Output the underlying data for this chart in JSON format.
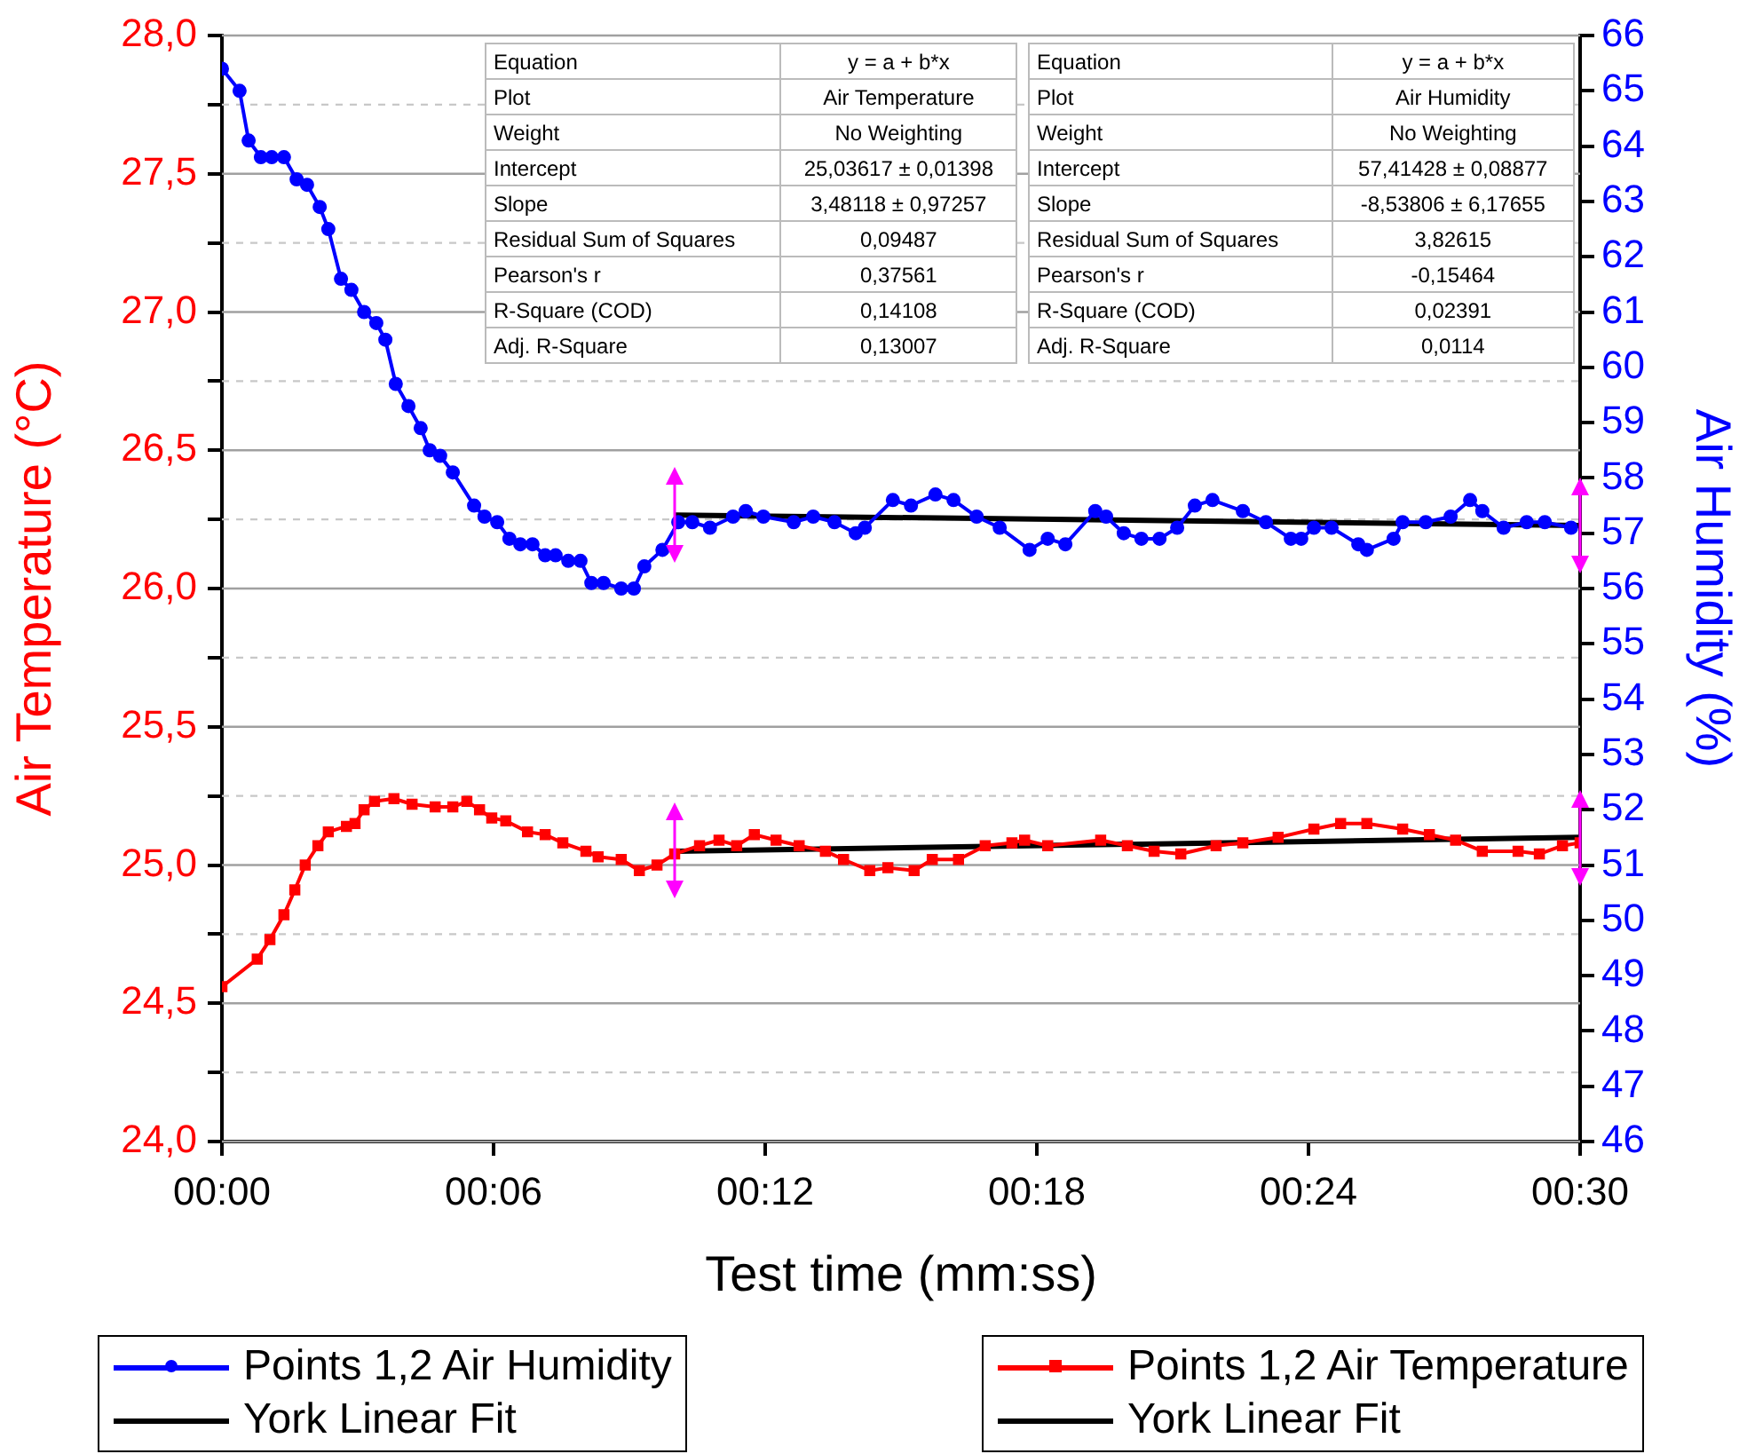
{
  "chart_data": {
    "type": "line",
    "xlabel": "Test time (mm:ss)",
    "ylabel": "Air Temperature (°C)",
    "y2label": "Air Humidity (%)",
    "xlim": [
      0,
      30
    ],
    "xticks": [
      {
        "value": 0,
        "label": "00:00"
      },
      {
        "value": 6,
        "label": "00:06"
      },
      {
        "value": 12,
        "label": "00:12"
      },
      {
        "value": 18,
        "label": "00:18"
      },
      {
        "value": 24,
        "label": "00:24"
      },
      {
        "value": 30,
        "label": "00:30"
      }
    ],
    "ylim": [
      24,
      28
    ],
    "yticks": [
      {
        "value": 24,
        "label": "24,0"
      },
      {
        "value": 24.25,
        "label": null
      },
      {
        "value": 24.5,
        "label": "24,5"
      },
      {
        "value": 24.75,
        "label": null
      },
      {
        "value": 25,
        "label": "25,0"
      },
      {
        "value": 25.25,
        "label": null
      },
      {
        "value": 25.5,
        "label": "25,5"
      },
      {
        "value": 25.75,
        "label": null
      },
      {
        "value": 26,
        "label": "26,0"
      },
      {
        "value": 26.25,
        "label": null
      },
      {
        "value": 26.5,
        "label": "26,5"
      },
      {
        "value": 26.75,
        "label": null
      },
      {
        "value": 27,
        "label": "27,0"
      },
      {
        "value": 27.25,
        "label": null
      },
      {
        "value": 27.5,
        "label": "27,5"
      },
      {
        "value": 27.75,
        "label": null
      },
      {
        "value": 28,
        "label": "28,0"
      }
    ],
    "y2lim": [
      46,
      66
    ],
    "y2ticks": [
      46,
      47,
      48,
      49,
      50,
      51,
      52,
      53,
      54,
      55,
      56,
      57,
      58,
      59,
      60,
      61,
      62,
      63,
      64,
      65,
      66
    ],
    "grid": "y",
    "legend": "bottom",
    "series": [
      {
        "name": "Points 1,2 Air Humidity",
        "color": "#0000ff",
        "axis": "y2",
        "marker": "circle",
        "x": [
          0,
          0.39,
          0.59,
          0.86,
          1.1,
          1.37,
          1.65,
          1.88,
          2.16,
          2.35,
          2.63,
          2.86,
          3.14,
          3.41,
          3.61,
          3.84,
          4.12,
          4.39,
          4.59,
          4.82,
          5.1,
          5.57,
          5.8,
          6.08,
          6.35,
          6.59,
          6.86,
          7.14,
          7.37,
          7.65,
          7.92,
          8.16,
          8.43,
          8.82,
          9.1,
          9.33,
          9.73,
          10.08,
          10.39,
          10.78,
          11.29,
          11.57,
          11.96,
          12.63,
          13.06,
          13.53,
          14,
          14.2,
          14.82,
          15.22,
          15.76,
          16.16,
          16.67,
          17.18,
          17.84,
          18.24,
          18.63,
          19.29,
          19.53,
          19.92,
          20.31,
          20.71,
          21.1,
          21.49,
          21.88,
          22.55,
          23.06,
          23.61,
          23.84,
          24.12,
          24.51,
          25.1,
          25.29,
          25.88,
          26.08,
          26.59,
          27.14,
          27.57,
          27.84,
          28.31,
          28.82,
          29.22,
          29.8
        ],
        "values": [
          65.4,
          65,
          64.1,
          63.8,
          63.8,
          63.8,
          63.4,
          63.3,
          62.9,
          62.5,
          61.6,
          61.4,
          61,
          60.8,
          60.5,
          59.7,
          59.3,
          58.9,
          58.5,
          58.4,
          58.1,
          57.5,
          57.3,
          57.2,
          56.9,
          56.8,
          56.8,
          56.6,
          56.6,
          56.5,
          56.5,
          56.1,
          56.1,
          56,
          56,
          56.4,
          56.7,
          57.2,
          57.2,
          57.1,
          57.3,
          57.4,
          57.3,
          57.2,
          57.3,
          57.2,
          57,
          57.1,
          57.6,
          57.5,
          57.7,
          57.6,
          57.3,
          57.1,
          56.7,
          56.9,
          56.8,
          57.4,
          57.3,
          57,
          56.9,
          56.9,
          57.1,
          57.5,
          57.6,
          57.4,
          57.2,
          56.9,
          56.9,
          57.1,
          57.1,
          56.8,
          56.7,
          56.9,
          57.2,
          57.2,
          57.3,
          57.6,
          57.4,
          57.1,
          57.2,
          57.2,
          57.1
        ]
      },
      {
        "name": "York Linear Fit",
        "color": "#000000",
        "axis": "y2",
        "marker": "none",
        "x": [
          10,
          30
        ],
        "values": [
          57.33,
          57.14
        ]
      },
      {
        "name": "Points 1,2 Air Temperature",
        "color": "#ff0000",
        "axis": "y",
        "marker": "square",
        "x": [
          0,
          0.78,
          1.06,
          1.37,
          1.61,
          1.84,
          2.12,
          2.35,
          2.75,
          2.94,
          3.14,
          3.37,
          3.8,
          4.2,
          4.71,
          5.1,
          5.41,
          5.69,
          5.96,
          6.27,
          6.75,
          7.14,
          7.53,
          8.04,
          8.31,
          8.82,
          9.22,
          9.61,
          10,
          10.55,
          10.98,
          11.37,
          11.76,
          12.24,
          12.75,
          13.33,
          13.73,
          14.31,
          14.71,
          15.29,
          15.69,
          16.27,
          16.86,
          17.45,
          17.73,
          18.24,
          19.41,
          20,
          20.59,
          21.18,
          21.96,
          22.55,
          23.33,
          24.12,
          24.71,
          25.29,
          26.08,
          26.67,
          27.25,
          27.84,
          28.63,
          29.1,
          29.61,
          30
        ],
        "values": [
          24.56,
          24.66,
          24.73,
          24.82,
          24.91,
          25,
          25.07,
          25.12,
          25.14,
          25.15,
          25.2,
          25.23,
          25.24,
          25.22,
          25.21,
          25.21,
          25.23,
          25.2,
          25.17,
          25.16,
          25.12,
          25.11,
          25.08,
          25.05,
          25.03,
          25.02,
          24.98,
          25,
          25.04,
          25.07,
          25.09,
          25.07,
          25.11,
          25.09,
          25.07,
          25.05,
          25.02,
          24.98,
          24.99,
          24.98,
          25.02,
          25.02,
          25.07,
          25.08,
          25.09,
          25.07,
          25.09,
          25.07,
          25.05,
          25.04,
          25.07,
          25.08,
          25.1,
          25.13,
          25.15,
          25.15,
          25.13,
          25.11,
          25.09,
          25.05,
          25.05,
          25.04,
          25.07,
          25.08
        ]
      },
      {
        "name": "York Linear Fit",
        "color": "#000000",
        "axis": "y",
        "marker": "none",
        "x": [
          10,
          30
        ],
        "values": [
          25.05,
          25.1
        ]
      }
    ],
    "annotations": [
      "Equation",
      "y = a + b*x",
      "Plot",
      "Air Temperature",
      "Weight",
      "No Weighting",
      "Intercept",
      "25,03617 ± 0,01398",
      "Slope",
      "3,48118 ± 0,97257",
      "Residual Sum of Squares",
      "0,09487",
      "Pearson's r",
      "0,37561",
      "R-Square (COD)",
      "0,14108",
      "Adj. R-Square",
      "0,13007",
      "Equation",
      "y = a + b*x",
      "Plot",
      "Air Humidity",
      "Weight",
      "No Weighting",
      "Intercept",
      "57,41428 ± 0,08877",
      "Slope",
      "-8,53806 ± 6,17655",
      "Residual Sum of Squares",
      "3,82615",
      "Pearson's r",
      "-0,15464",
      "R-Square (COD)",
      "0,02391",
      "Adj. R-Square",
      "0,0114"
    ]
  }
}
